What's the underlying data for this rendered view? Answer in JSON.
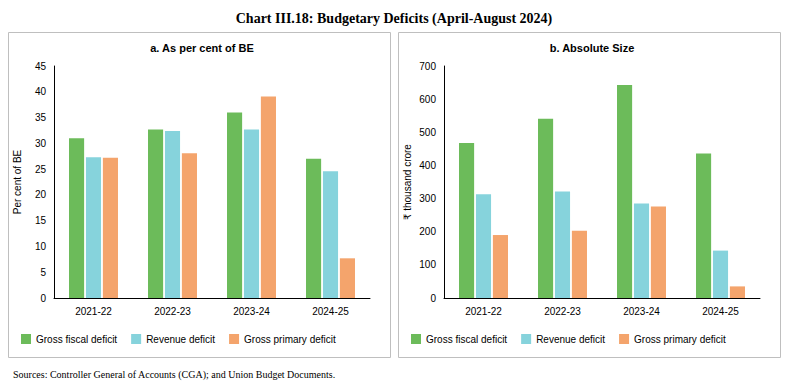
{
  "title": "Chart III.18: Budgetary Deficits (April-August 2024)",
  "source": "Sources: Controller General of Accounts (CGA); and Union Budget Documents.",
  "chart_data": [
    {
      "type": "bar",
      "title": "a. As per cent of BE",
      "y_label": "Per cent of BE",
      "categories": [
        "2021-22",
        "2022-23",
        "2023-24",
        "2024-25"
      ],
      "series": [
        {
          "name": "Gross fiscal deficit",
          "color": "#6cbb5a",
          "values": [
            31.0,
            32.7,
            36.0,
            27.0
          ]
        },
        {
          "name": "Revenue deficit",
          "color": "#86d3dc",
          "values": [
            27.3,
            32.4,
            32.7,
            24.6
          ]
        },
        {
          "name": "Gross primary deficit",
          "color": "#f4a46c",
          "values": [
            27.2,
            28.1,
            39.1,
            7.7
          ]
        }
      ],
      "ylim": [
        0,
        45
      ],
      "yticks": [
        0,
        5,
        10,
        15,
        20,
        25,
        30,
        35,
        40,
        45
      ],
      "grid": false,
      "legend": "bottom"
    },
    {
      "type": "bar",
      "title": "b. Absolute Size",
      "y_label": "₹ thousand crore",
      "categories": [
        "2021-22",
        "2022-23",
        "2023-24",
        "2024-25"
      ],
      "series": [
        {
          "name": "Gross fiscal deficit",
          "color": "#6cbb5a",
          "values": [
            468,
            541,
            643,
            436
          ]
        },
        {
          "name": "Revenue deficit",
          "color": "#86d3dc",
          "values": [
            313,
            321,
            285,
            143
          ]
        },
        {
          "name": "Gross primary deficit",
          "color": "#f4a46c",
          "values": [
            190,
            203,
            276,
            35
          ]
        }
      ],
      "ylim": [
        0,
        700
      ],
      "yticks": [
        0,
        100,
        200,
        300,
        400,
        500,
        600,
        700
      ],
      "grid": false,
      "legend": "bottom"
    }
  ]
}
